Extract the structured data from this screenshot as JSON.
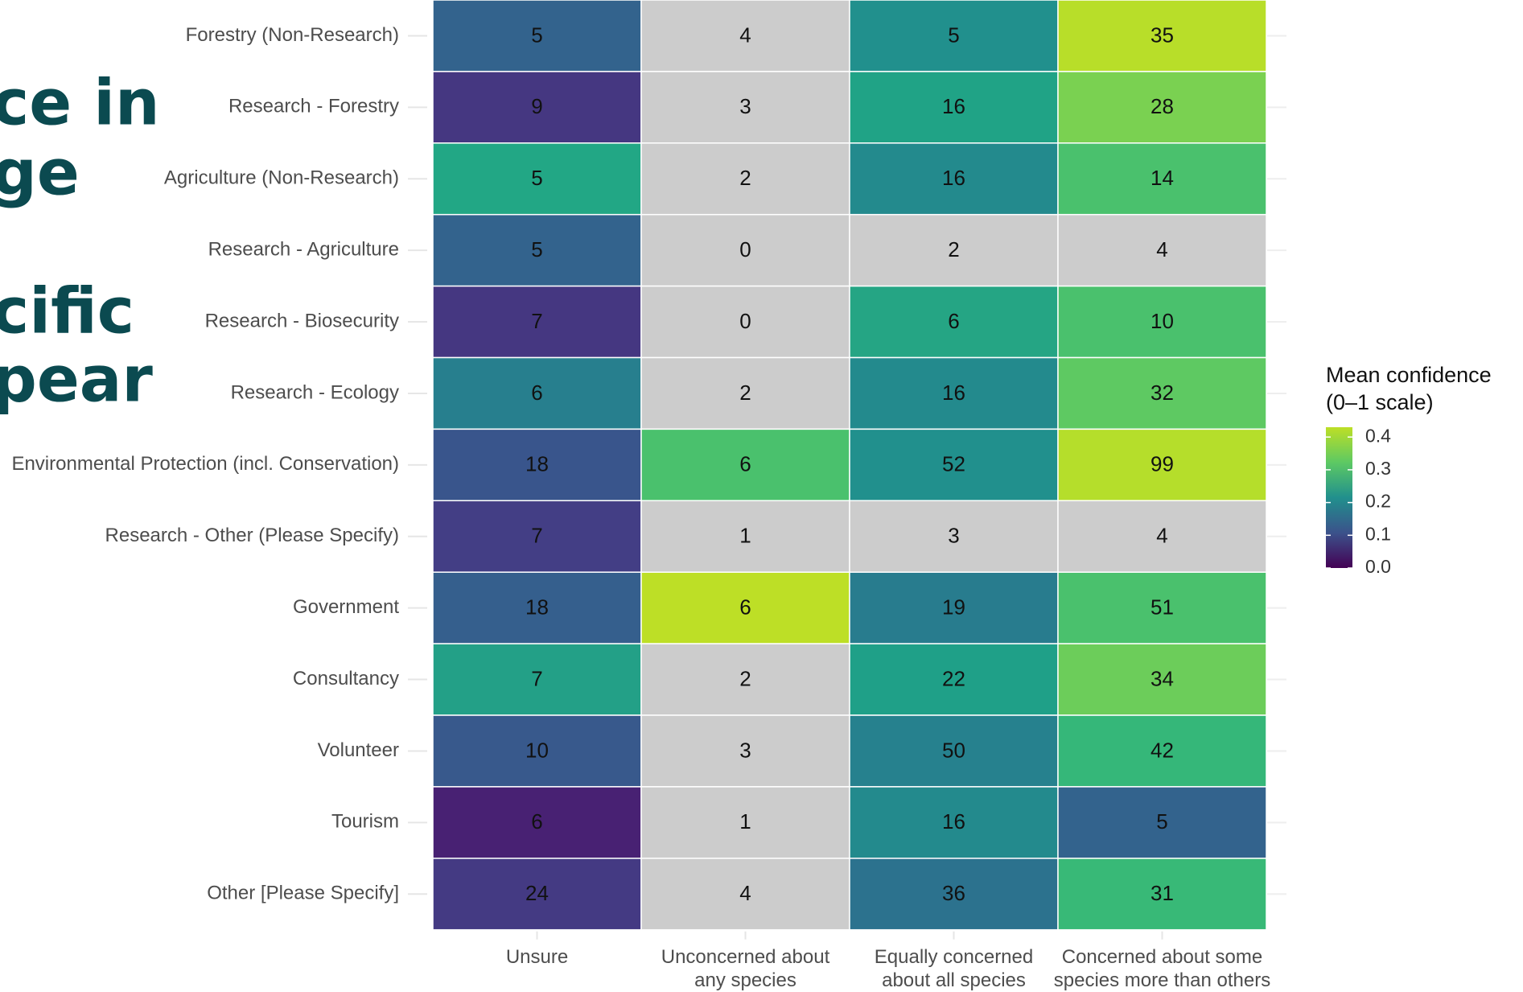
{
  "background_text": [
    "ce in",
    "ge",
    "cific",
    "pear"
  ],
  "chart_data": {
    "type": "heatmap",
    "rows": [
      "Forestry (Non-Research)",
      "Research - Forestry",
      "Agriculture (Non-Research)",
      "Research - Agriculture",
      "Research - Biosecurity",
      "Research - Ecology",
      "Environmental Protection (incl. Conservation)",
      "Research - Other (Please Specify)",
      "Government",
      "Consultancy",
      "Volunteer",
      "Tourism",
      "Other [Please Specify]"
    ],
    "columns": [
      [
        "Unsure"
      ],
      [
        "Unconcerned about",
        "any species"
      ],
      [
        "Equally concerned",
        "about all species"
      ],
      [
        "Concerned about some",
        "species more than others"
      ]
    ],
    "values": [
      [
        5,
        4,
        5,
        35
      ],
      [
        9,
        3,
        16,
        28
      ],
      [
        5,
        2,
        16,
        14
      ],
      [
        5,
        0,
        2,
        4
      ],
      [
        7,
        0,
        6,
        10
      ],
      [
        6,
        2,
        16,
        32
      ],
      [
        18,
        6,
        52,
        99
      ],
      [
        7,
        1,
        3,
        4
      ],
      [
        18,
        6,
        19,
        51
      ],
      [
        7,
        2,
        22,
        34
      ],
      [
        10,
        3,
        50,
        42
      ],
      [
        6,
        1,
        16,
        5
      ],
      [
        24,
        4,
        36,
        31
      ]
    ],
    "colors": [
      [
        "#33638d",
        "#cccccc",
        "#21908d",
        "#b8de29"
      ],
      [
        "#453781",
        "#cccccc",
        "#20a386",
        "#7ad151"
      ],
      [
        "#22a785",
        "#cccccc",
        "#238a8d",
        "#4ac16d"
      ],
      [
        "#33638d",
        "#cccccc",
        "#cccccc",
        "#cccccc"
      ],
      [
        "#453781",
        "#cccccc",
        "#25a584",
        "#4ac16d"
      ],
      [
        "#277f8e",
        "#cccccc",
        "#238a8d",
        "#5ec962"
      ],
      [
        "#39558c",
        "#4ac16d",
        "#21908d",
        "#b5de2b"
      ],
      [
        "#433e85",
        "#cccccc",
        "#cccccc",
        "#cccccc"
      ],
      [
        "#355f8d",
        "#bddf26",
        "#287c8e",
        "#4ac16d"
      ],
      [
        "#23a087",
        "#cccccc",
        "#1fa088",
        "#6ccd5a"
      ],
      [
        "#38598c",
        "#cccccc",
        "#26818e",
        "#35b779"
      ],
      [
        "#482173",
        "#cccccc",
        "#238a8d",
        "#33638d"
      ],
      [
        "#443a83",
        "#cccccc",
        "#2c728e",
        "#38b977"
      ]
    ],
    "colorbar": {
      "title": [
        "Mean confidence",
        "(0–1 scale)"
      ],
      "lim": [
        0,
        0.43
      ],
      "colorscale": [
        "#440154",
        "#3b528b",
        "#21908d",
        "#5dc963",
        "#bddf26"
      ],
      "ticks": [
        {
          "value": 0,
          "label": "0.0"
        },
        {
          "value": 0.1,
          "label": "0.1"
        },
        {
          "value": 0.2,
          "label": "0.2"
        },
        {
          "value": 0.3,
          "label": "0.3"
        },
        {
          "value": 0.4,
          "label": "0.4"
        }
      ]
    }
  }
}
